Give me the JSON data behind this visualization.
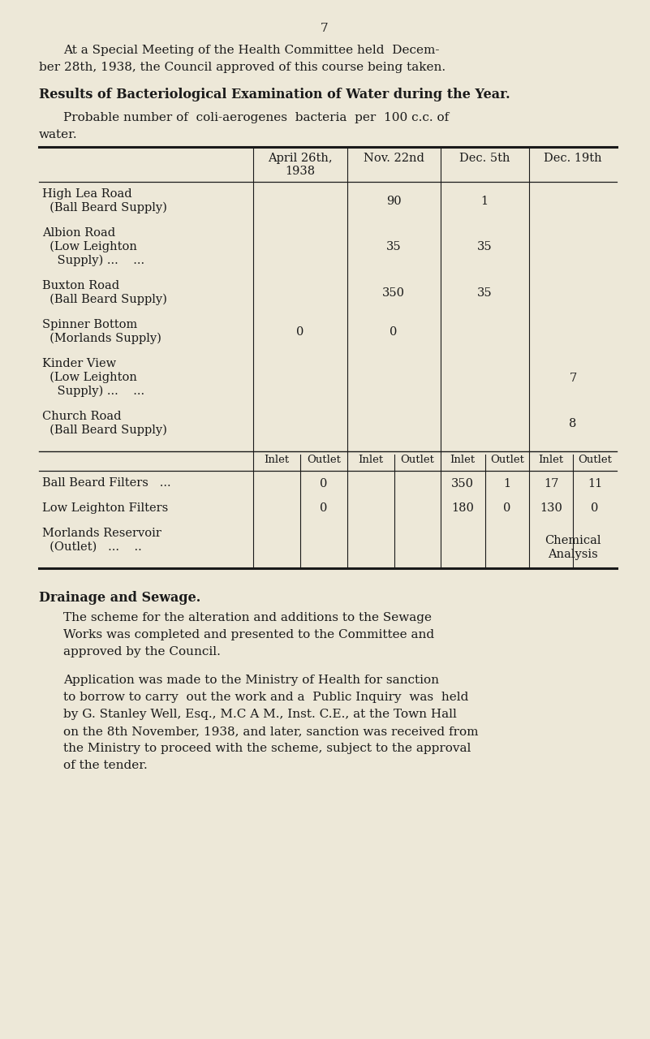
{
  "bg_color": "#ede8d8",
  "text_color": "#1a1a1a",
  "page_number": "7",
  "intro_line1": "At a Special Meeting of the Health Committee held  Decem-",
  "intro_line2": "ber 28th, 1938, the Council approved of this course being taken.",
  "section_heading": "Results of Bacteriological Examination of Water during the Year.",
  "subtitle_line1": "Probable number of  coli-aerogenes  bacteria  per  100 c.c. of",
  "subtitle_line2": "water.",
  "col_headers": [
    "April 26th,",
    "1938",
    "Nov. 22nd",
    "Dec. 5th",
    "Dec. 19th"
  ],
  "top_rows": [
    {
      "lines": [
        "High Lea Road",
        "  (Ball Beard Supply)"
      ],
      "apr": "",
      "nov": "90",
      "dec5": "1",
      "dec19": ""
    },
    {
      "lines": [
        "Albion Road",
        "  (Low Leighton",
        "    Supply) ...    ..."
      ],
      "apr": "",
      "nov": "35",
      "dec5": "35",
      "dec19": ""
    },
    {
      "lines": [
        "Buxton Road",
        "  (Ball Beard Supply)"
      ],
      "apr": "",
      "nov": "350",
      "dec5": "35",
      "dec19": ""
    },
    {
      "lines": [
        "Spinner Bottom",
        "  (Morlands Supply)"
      ],
      "apr": "0",
      "nov": "0",
      "dec5": "",
      "dec19": ""
    },
    {
      "lines": [
        "Kinder View",
        "  (Low Leighton",
        "    Supply) ...    ..."
      ],
      "apr": "",
      "nov": "",
      "dec5": "",
      "dec19": "7"
    },
    {
      "lines": [
        "Church Road",
        "  (Ball Beard Supply)"
      ],
      "apr": "",
      "nov": "",
      "dec5": "",
      "dec19": "8"
    }
  ],
  "bottom_rows": [
    {
      "lines": [
        "Ball Beard Filters   ..."
      ],
      "vals": [
        "",
        "0",
        "",
        "",
        "350",
        "1",
        "17",
        "11"
      ]
    },
    {
      "lines": [
        "Low Leighton Filters"
      ],
      "vals": [
        "",
        "0",
        "",
        "",
        "180",
        "0",
        "130",
        "0"
      ]
    },
    {
      "lines": [
        "Morlands Reservoir",
        "  (Outlet)   ...    .."
      ],
      "vals": [
        "",
        "",
        "",
        "",
        "",
        "",
        "Chemical",
        "Analysis"
      ]
    }
  ],
  "drainage_heading": "Drainage and Sewage.",
  "drainage_para1_lines": [
    "The scheme for the alteration and additions to the Sewage",
    "Works was completed and presented to the Committee and",
    "approved by the Council."
  ],
  "drainage_para2_lines": [
    "Application was made to the Ministry of Health for sanction",
    "to borrow to carry  out the work and a  Public Inquiry  was  held",
    "by G. Stanley Well, Esq., M.C A M., Inst. C.E., at the Town Hall",
    "on the 8th November, 1938, and later, sanction was received from",
    "the Ministry to proceed with the scheme, subject to the approval",
    "of the tender."
  ]
}
